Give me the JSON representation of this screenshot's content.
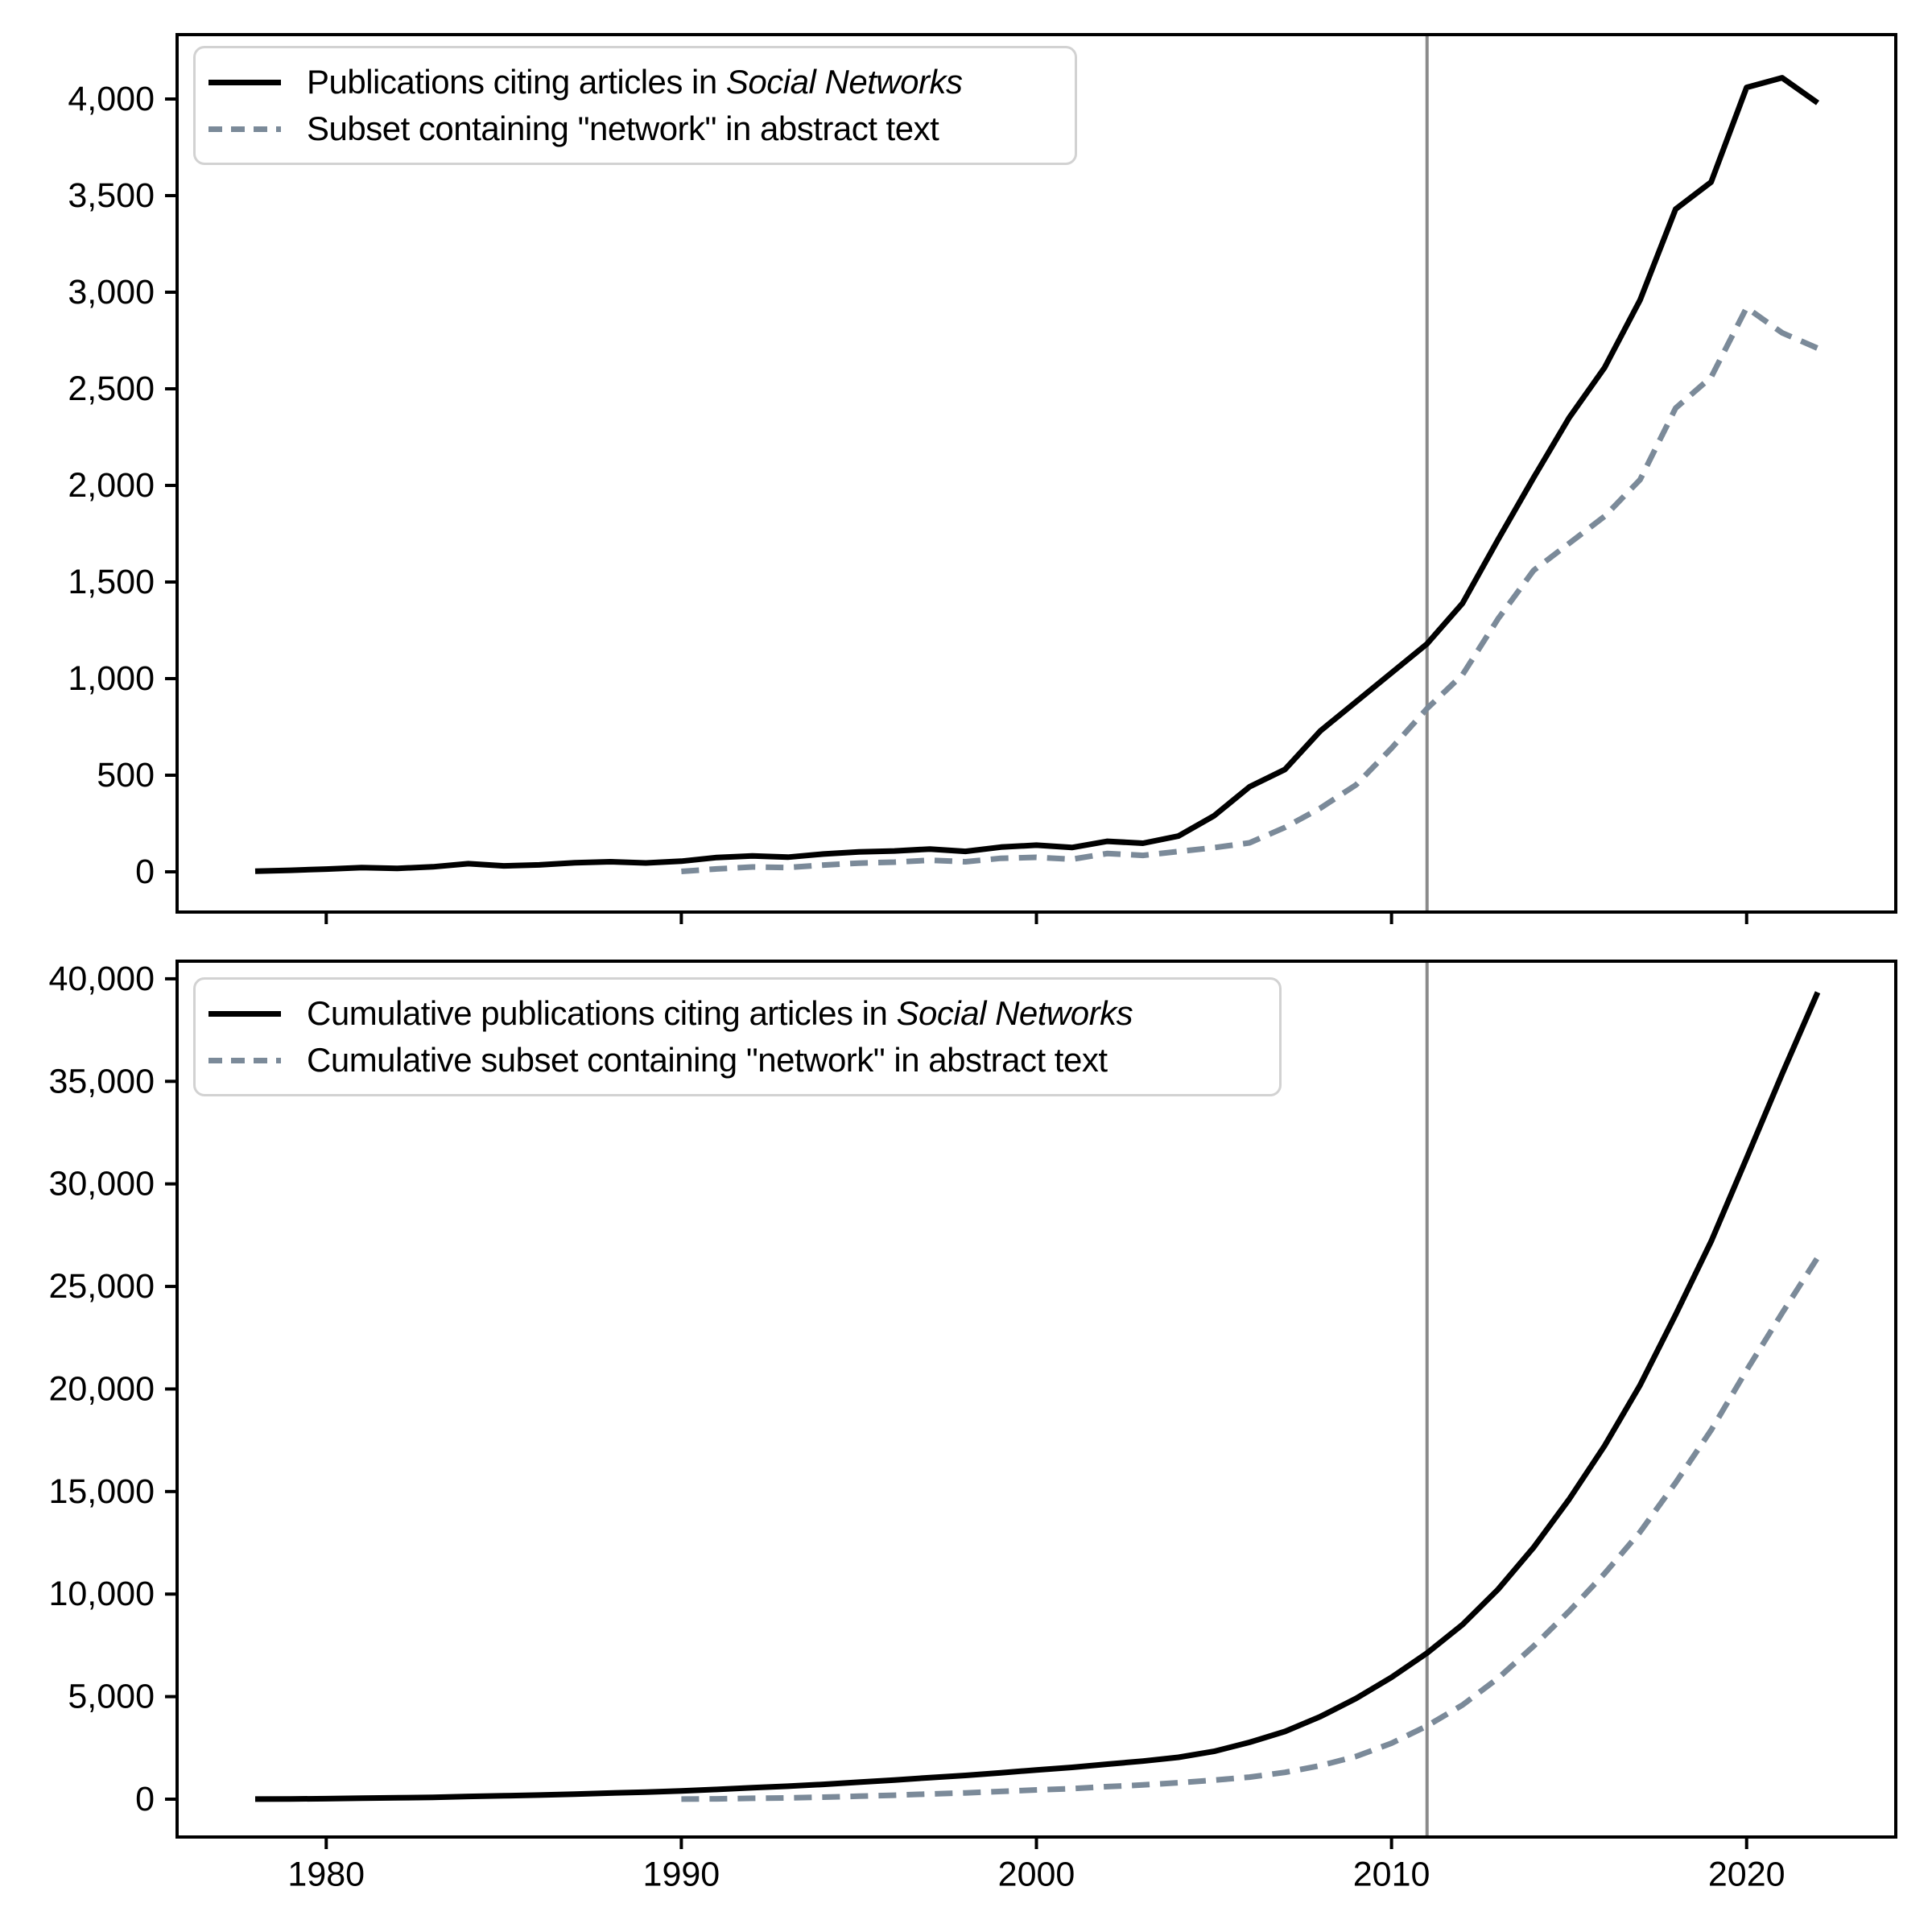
{
  "figure": {
    "background": "#ffffff",
    "axis_color": "#000000",
    "tick_label_color": "#000000",
    "legend_border_color": "#d2d2d2",
    "vline_color": "#8a8a8a",
    "solid_series_color": "#000000",
    "dashed_series_color": "#7b8a99"
  },
  "chart_data": [
    {
      "type": "line",
      "panel": "annual",
      "title": "",
      "xlabel": "",
      "ylabel": "",
      "xlim": [
        1975.8,
        2024.2
      ],
      "ylim": [
        -210,
        4330
      ],
      "grid": false,
      "legend_position": "upper left",
      "xticks": [
        1980,
        1990,
        2000,
        2010,
        2020
      ],
      "xtick_labels": [
        "1980",
        "1990",
        "2000",
        "2010",
        "2020"
      ],
      "xtick_labels_visible": false,
      "yticks": [
        0,
        500,
        1000,
        1500,
        2000,
        2500,
        3000,
        3500,
        4000
      ],
      "ytick_labels": [
        "0",
        "500",
        "1,000",
        "1,500",
        "2,000",
        "2,500",
        "3,000",
        "3,500",
        "4,000"
      ],
      "annotation_vline_year": 2011,
      "legend": [
        {
          "prefix": "Publications citing articles in ",
          "italic": "Social Networks",
          "style": "solid",
          "color": "#000000"
        },
        {
          "prefix": "Subset containing \"network\" in abstract text",
          "italic": "",
          "style": "dashed",
          "color": "#7b8a99"
        }
      ],
      "series": [
        {
          "name": "Publications citing articles in Social Networks",
          "style": "solid",
          "color": "#000000",
          "start_year": 1978,
          "values": [
            3,
            8,
            14,
            22,
            18,
            26,
            42,
            31,
            36,
            47,
            52,
            46,
            55,
            74,
            82,
            76,
            92,
            103,
            108,
            118,
            106,
            128,
            138,
            126,
            158,
            148,
            185,
            290,
            440,
            530,
            730,
            880,
            1030,
            1180,
            1390,
            1720,
            2040,
            2350,
            2610,
            2960,
            3430,
            3570,
            4060,
            4110,
            3980
          ]
        },
        {
          "name": "Subset containing \"network\" in abstract text",
          "style": "dashed",
          "color": "#7b8a99",
          "start_year": 1990,
          "values": [
            2,
            15,
            25,
            22,
            35,
            45,
            50,
            60,
            52,
            70,
            75,
            65,
            95,
            85,
            105,
            125,
            150,
            230,
            330,
            450,
            640,
            845,
            1020,
            1310,
            1560,
            1700,
            1840,
            2030,
            2400,
            2560,
            2920,
            2790,
            2710
          ]
        }
      ]
    },
    {
      "type": "line",
      "panel": "cumulative",
      "title": "",
      "xlabel": "",
      "ylabel": "",
      "xlim": [
        1975.8,
        2024.2
      ],
      "ylim": [
        -2200,
        40900
      ],
      "grid": false,
      "legend_position": "upper left",
      "xticks": [
        1980,
        1990,
        2000,
        2010,
        2020
      ],
      "xtick_labels": [
        "1980",
        "1990",
        "2000",
        "2010",
        "2020"
      ],
      "xtick_labels_visible": true,
      "yticks": [
        0,
        5000,
        10000,
        15000,
        20000,
        25000,
        30000,
        35000,
        40000
      ],
      "ytick_labels": [
        "0",
        "5,000",
        "10,000",
        "15,000",
        "20,000",
        "25,000",
        "30,000",
        "35,000",
        "40,000"
      ],
      "annotation_vline_year": 2011,
      "legend": [
        {
          "prefix": "Cumulative publications citing articles in ",
          "italic": "Social Networks",
          "style": "solid",
          "color": "#000000"
        },
        {
          "prefix": "Cumulative subset containing \"network\" in abstract text",
          "italic": "",
          "style": "dashed",
          "color": "#7b8a99"
        }
      ],
      "series": [
        {
          "name": "Cumulative publications citing articles in Social Networks",
          "style": "solid",
          "color": "#000000",
          "start_year": 1978,
          "values": [
            3,
            11,
            25,
            47,
            65,
            91,
            133,
            164,
            200,
            247,
            299,
            345,
            400,
            474,
            556,
            632,
            724,
            827,
            935,
            1053,
            1159,
            1287,
            1425,
            1551,
            1709,
            1857,
            2042,
            2332,
            2772,
            3302,
            4032,
            4912,
            5942,
            7122,
            8512,
            10232,
            12272,
            14622,
            17232,
            20192,
            23622,
            27192,
            31252,
            35362,
            39342
          ]
        },
        {
          "name": "Cumulative subset containing \"network\" in abstract text",
          "style": "dashed",
          "color": "#7b8a99",
          "start_year": 1990,
          "values": [
            2,
            17,
            42,
            64,
            99,
            144,
            194,
            254,
            306,
            376,
            451,
            516,
            611,
            696,
            801,
            926,
            1076,
            1306,
            1636,
            2086,
            2726,
            3571,
            4591,
            5901,
            7461,
            9161,
            11001,
            13031,
            15431,
            17991,
            20911,
            23701,
            26411
          ]
        }
      ]
    }
  ]
}
